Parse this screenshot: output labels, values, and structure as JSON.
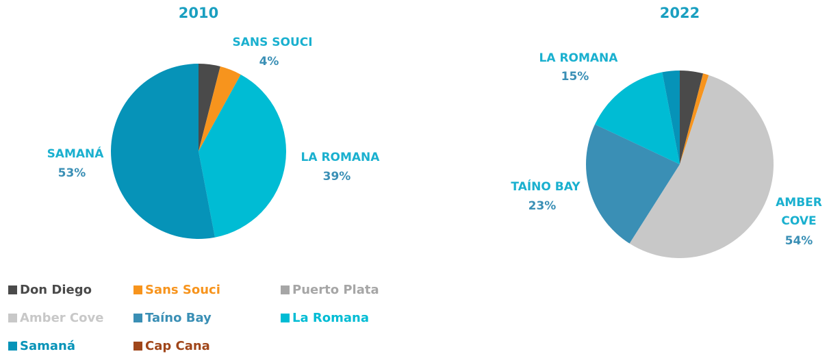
{
  "chart_data": [
    {
      "type": "pie",
      "title": "2010",
      "values": [
        4,
        4,
        39,
        53
      ],
      "colors": [
        "#4a4a4a",
        "#f7941d",
        "#00bcd4",
        "#0693b8"
      ],
      "labels": [
        null,
        "SANS SOUCI",
        "LA ROMANA",
        "SAMANÁ"
      ],
      "value_labels": [
        null,
        "4%",
        "39%",
        "53%"
      ]
    },
    {
      "type": "pie",
      "title": "2022",
      "values": [
        4,
        1,
        54,
        23,
        15,
        3
      ],
      "colors": [
        "#4a4a4a",
        "#f7941d",
        "#c8c8c8",
        "#3a8fb5",
        "#00bcd4",
        "#0693b8"
      ],
      "labels": [
        null,
        null,
        "AMBER COVE",
        "TAÍNO BAY",
        "LA ROMANA",
        null
      ],
      "value_labels": [
        null,
        null,
        "54%",
        "23%",
        "15%",
        null
      ]
    }
  ],
  "legend": [
    {
      "name": "Don Diego",
      "color": "#4a4a4a"
    },
    {
      "name": "Sans Souci",
      "color": "#f7941d"
    },
    {
      "name": "Puerto Plata",
      "color": "#a6a6a6"
    },
    {
      "name": "Amber Cove",
      "color": "#c8c8c8"
    },
    {
      "name": "Taíno Bay",
      "color": "#3a8fb5"
    },
    {
      "name": "La Romana",
      "color": "#00bcd4"
    },
    {
      "name": "Samaná",
      "color": "#0693b8"
    },
    {
      "name": "Cap Cana",
      "color": "#a0461a"
    }
  ]
}
